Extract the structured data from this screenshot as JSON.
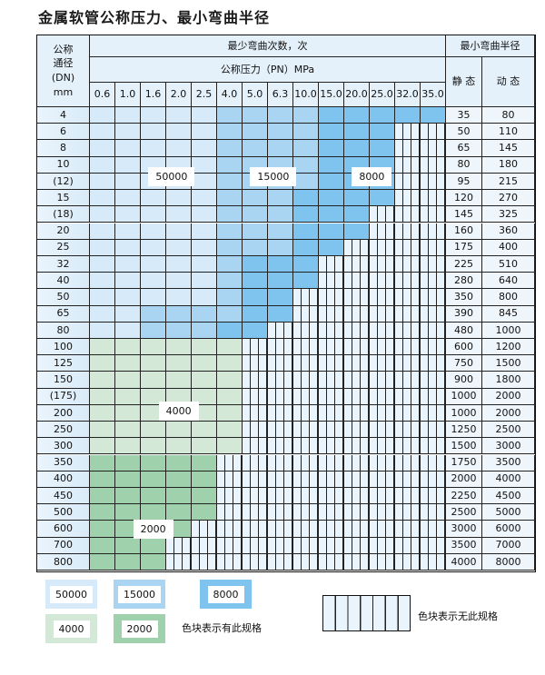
{
  "title": "金属软管公称压力、最小弯曲半径",
  "header": {
    "dn_label": [
      "公称",
      "通径",
      "(DN)",
      "mm"
    ],
    "bend_count_label": "最少弯曲次数，次",
    "pn_label": "公称压力（PN）MPa",
    "radius_label": "最小弯曲半径",
    "static_label": "静 态",
    "dynamic_label": "动 态"
  },
  "pn_values": [
    "0.6",
    "1.0",
    "1.6",
    "2.0",
    "2.5",
    "4.0",
    "5.0",
    "6.3",
    "10.0",
    "15.0",
    "20.0",
    "25.0",
    "32.0",
    "35.0"
  ],
  "colors": {
    "a": "#d6eaf9",
    "b": "#a9d5f3",
    "c": "#7ec4ee",
    "d": "#d3e8d6",
    "e": "#9fd1ad",
    "x": "#eaf4fc"
  },
  "rows": [
    {
      "dn": "4",
      "static": "35",
      "dynamic": "80",
      "pattern": "aaaaabbbbccccc"
    },
    {
      "dn": "6",
      "static": "50",
      "dynamic": "110",
      "pattern": "aaaaabbbbcccxx"
    },
    {
      "dn": "8",
      "static": "65",
      "dynamic": "145",
      "pattern": "aaaaabbbbcccxx"
    },
    {
      "dn": "10",
      "static": "80",
      "dynamic": "180",
      "pattern": "aaaaabbbbcccxx"
    },
    {
      "dn": "(12)",
      "static": "95",
      "dynamic": "215",
      "pattern": "aaaaabbbbcccxx"
    },
    {
      "dn": "15",
      "static": "120",
      "dynamic": "270",
      "pattern": "aaaaabbbccccxx"
    },
    {
      "dn": "(18)",
      "static": "145",
      "dynamic": "325",
      "pattern": "aaaaabbbcccxxx"
    },
    {
      "dn": "20",
      "static": "160",
      "dynamic": "360",
      "pattern": "aaaaabbbcccxxx"
    },
    {
      "dn": "25",
      "static": "175",
      "dynamic": "400",
      "pattern": "aaaaabbbccxxxx"
    },
    {
      "dn": "32",
      "static": "225",
      "dynamic": "510",
      "pattern": "aaaaabcccxxxxx"
    },
    {
      "dn": "40",
      "static": "280",
      "dynamic": "640",
      "pattern": "aaaaabcccxxxxx"
    },
    {
      "dn": "50",
      "static": "350",
      "dynamic": "800",
      "pattern": "aaaaabccxxxxxx"
    },
    {
      "dn": "65",
      "static": "390",
      "dynamic": "845",
      "pattern": "aabbbbccxxxxxx"
    },
    {
      "dn": "80",
      "static": "480",
      "dynamic": "1000",
      "pattern": "aabbbccxxxxxxx"
    },
    {
      "dn": "100",
      "static": "600",
      "dynamic": "1200",
      "pattern": "ddddddxxxxxxxx"
    },
    {
      "dn": "125",
      "static": "750",
      "dynamic": "1500",
      "pattern": "ddddddxxxxxxxx"
    },
    {
      "dn": "150",
      "static": "900",
      "dynamic": "1800",
      "pattern": "ddddddxxxxxxxx"
    },
    {
      "dn": "(175)",
      "static": "1000",
      "dynamic": "2000",
      "pattern": "ddddddxxxxxxxx"
    },
    {
      "dn": "200",
      "static": "1000",
      "dynamic": "2000",
      "pattern": "ddddddxxxxxxxx"
    },
    {
      "dn": "250",
      "static": "1250",
      "dynamic": "2500",
      "pattern": "ddddddxxxxxxxx"
    },
    {
      "dn": "300",
      "static": "1500",
      "dynamic": "3000",
      "pattern": "ddddddxxxxxxxx"
    },
    {
      "dn": "350",
      "static": "1750",
      "dynamic": "3500",
      "pattern": "eeeeexxxxxxxxx"
    },
    {
      "dn": "400",
      "static": "2000",
      "dynamic": "4000",
      "pattern": "eeeeexxxxxxxxx"
    },
    {
      "dn": "450",
      "static": "2250",
      "dynamic": "4500",
      "pattern": "eeeeexxxxxxxxx"
    },
    {
      "dn": "500",
      "static": "2500",
      "dynamic": "5000",
      "pattern": "eeeeexxxxxxxxx"
    },
    {
      "dn": "600",
      "static": "3000",
      "dynamic": "6000",
      "pattern": "eeeexxxxxxxxxx"
    },
    {
      "dn": "700",
      "static": "3500",
      "dynamic": "7000",
      "pattern": "eeexxxxxxxxxxx"
    },
    {
      "dn": "800",
      "static": "4000",
      "dynamic": "8000",
      "pattern": "eeexxxxxxxxxxx"
    }
  ],
  "region_labels": {
    "a": "50000",
    "b": "15000",
    "c": "8000",
    "d": "4000",
    "e": "2000"
  },
  "legend": {
    "items": [
      {
        "key": "a",
        "label": "50000"
      },
      {
        "key": "b",
        "label": "15000"
      },
      {
        "key": "c",
        "label": "8000"
      },
      {
        "key": "d",
        "label": "4000"
      },
      {
        "key": "e",
        "label": "2000"
      }
    ],
    "has_spec_note": "色块表示有此规格",
    "no_spec_note": "色块表示无此规格"
  }
}
